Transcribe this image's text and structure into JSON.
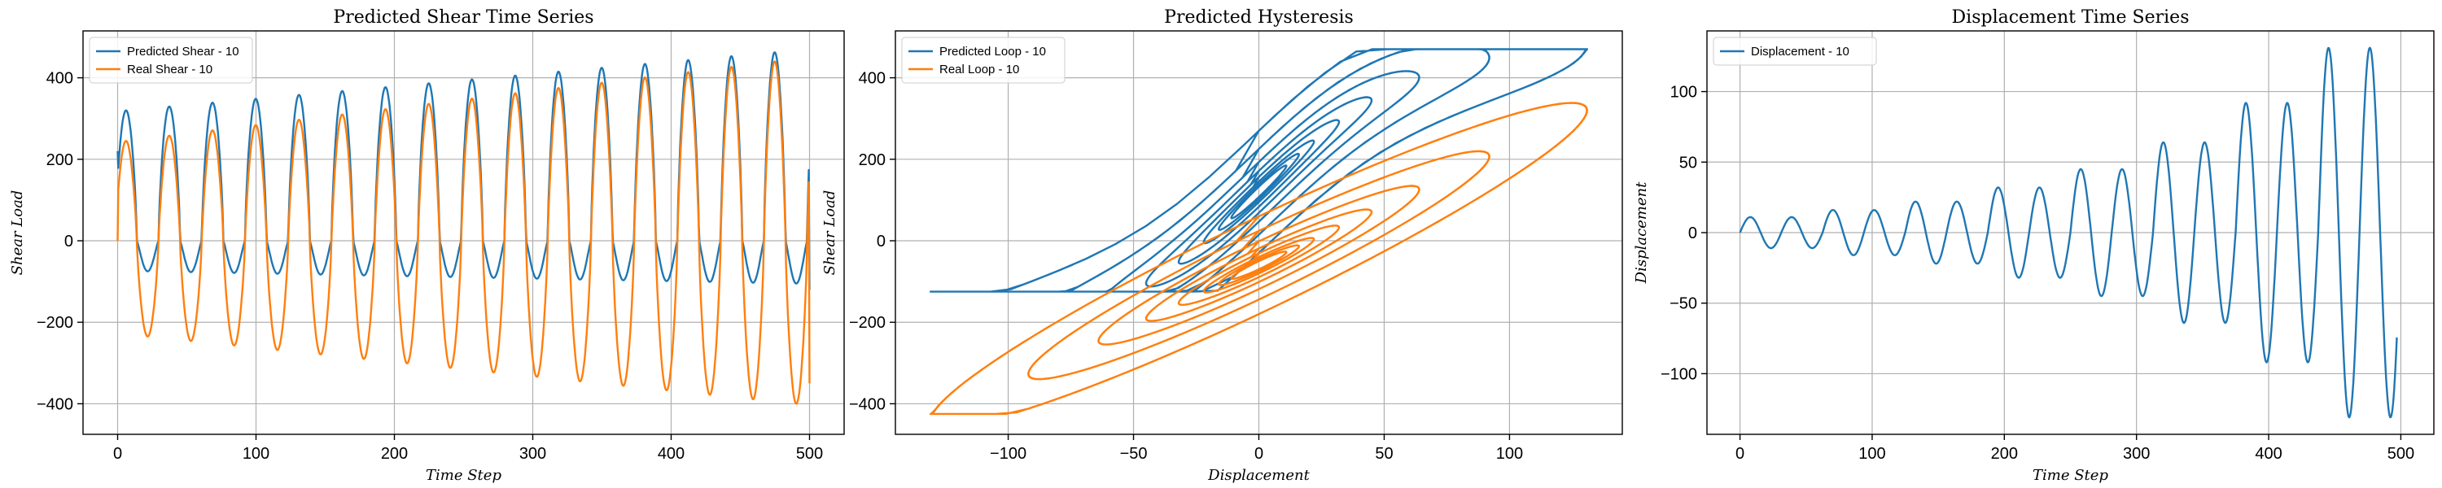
{
  "chart_data": [
    {
      "type": "line",
      "title": "Predicted Shear Time Series",
      "xlabel": "Time Step",
      "ylabel": "Shear Load",
      "xlim": [
        -25,
        525
      ],
      "ylim": [
        -475,
        515
      ],
      "xticks": [
        0,
        100,
        200,
        300,
        400,
        500
      ],
      "yticks": [
        -400,
        -200,
        0,
        200,
        400
      ],
      "grid": true,
      "legend_position": "top-left",
      "generator": "shear",
      "series": [
        {
          "name": "Predicted Shear - 10",
          "color": "#1f77b4"
        },
        {
          "name": "Real Shear - 10",
          "color": "#ff7f0e"
        }
      ]
    },
    {
      "type": "line",
      "title": "Predicted Hysteresis",
      "xlabel": "Displacement",
      "ylabel": "Shear Load",
      "xlim": [
        -145,
        145
      ],
      "ylim": [
        -475,
        515
      ],
      "xticks": [
        -100,
        -50,
        0,
        50,
        100
      ],
      "yticks": [
        -400,
        -200,
        0,
        200,
        400
      ],
      "grid": true,
      "legend_position": "top-left",
      "generator": "hysteresis",
      "series": [
        {
          "name": "Predicted Loop - 10",
          "color": "#1f77b4"
        },
        {
          "name": "Real Loop - 10",
          "color": "#ff7f0e"
        }
      ]
    },
    {
      "type": "line",
      "title": "Displacement Time Series",
      "xlabel": "Time Step",
      "ylabel": "Displacement",
      "xlim": [
        -25,
        525
      ],
      "ylim": [
        -143,
        143
      ],
      "xticks": [
        0,
        100,
        200,
        300,
        400,
        500
      ],
      "yticks": [
        -100,
        -50,
        0,
        50,
        100
      ],
      "grid": true,
      "legend_position": "top-left",
      "generator": "displacement",
      "series": [
        {
          "name": "Displacement - 10",
          "color": "#1f77b4"
        }
      ]
    }
  ]
}
